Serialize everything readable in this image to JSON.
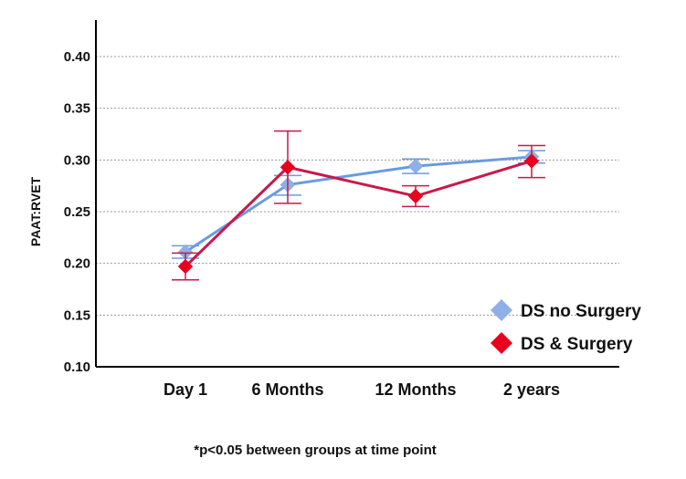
{
  "chart_data": {
    "type": "line",
    "categories": [
      "Day 1",
      "6 Months",
      "12 Months",
      "2 years"
    ],
    "ylabel": "PAAT:RVET",
    "xlabel": "",
    "ylim": [
      0.1,
      0.43
    ],
    "yticks": [
      "0.10",
      "0.15",
      "0.20",
      "0.25",
      "0.30",
      "0.35",
      "0.40"
    ],
    "grid": "horizontal dotted",
    "legend_position": "bottom-right",
    "series": [
      {
        "name": "DS no Surgery",
        "color": "#6a9be0",
        "marker_color": "#8fb0e6",
        "values": [
          0.211,
          0.276,
          0.294,
          0.303
        ],
        "err_low": [
          0.205,
          0.266,
          0.287,
          0.297
        ],
        "err_high": [
          0.217,
          0.285,
          0.301,
          0.309
        ]
      },
      {
        "name": "DS & Surgery",
        "color": "#c8194a",
        "marker_color": "#e8001c",
        "values": [
          0.197,
          0.293,
          0.265,
          0.299
        ],
        "err_low": [
          0.184,
          0.258,
          0.255,
          0.283
        ],
        "err_high": [
          0.21,
          0.328,
          0.275,
          0.314
        ]
      }
    ],
    "footnote": "*p<0.05 between groups at time point"
  }
}
